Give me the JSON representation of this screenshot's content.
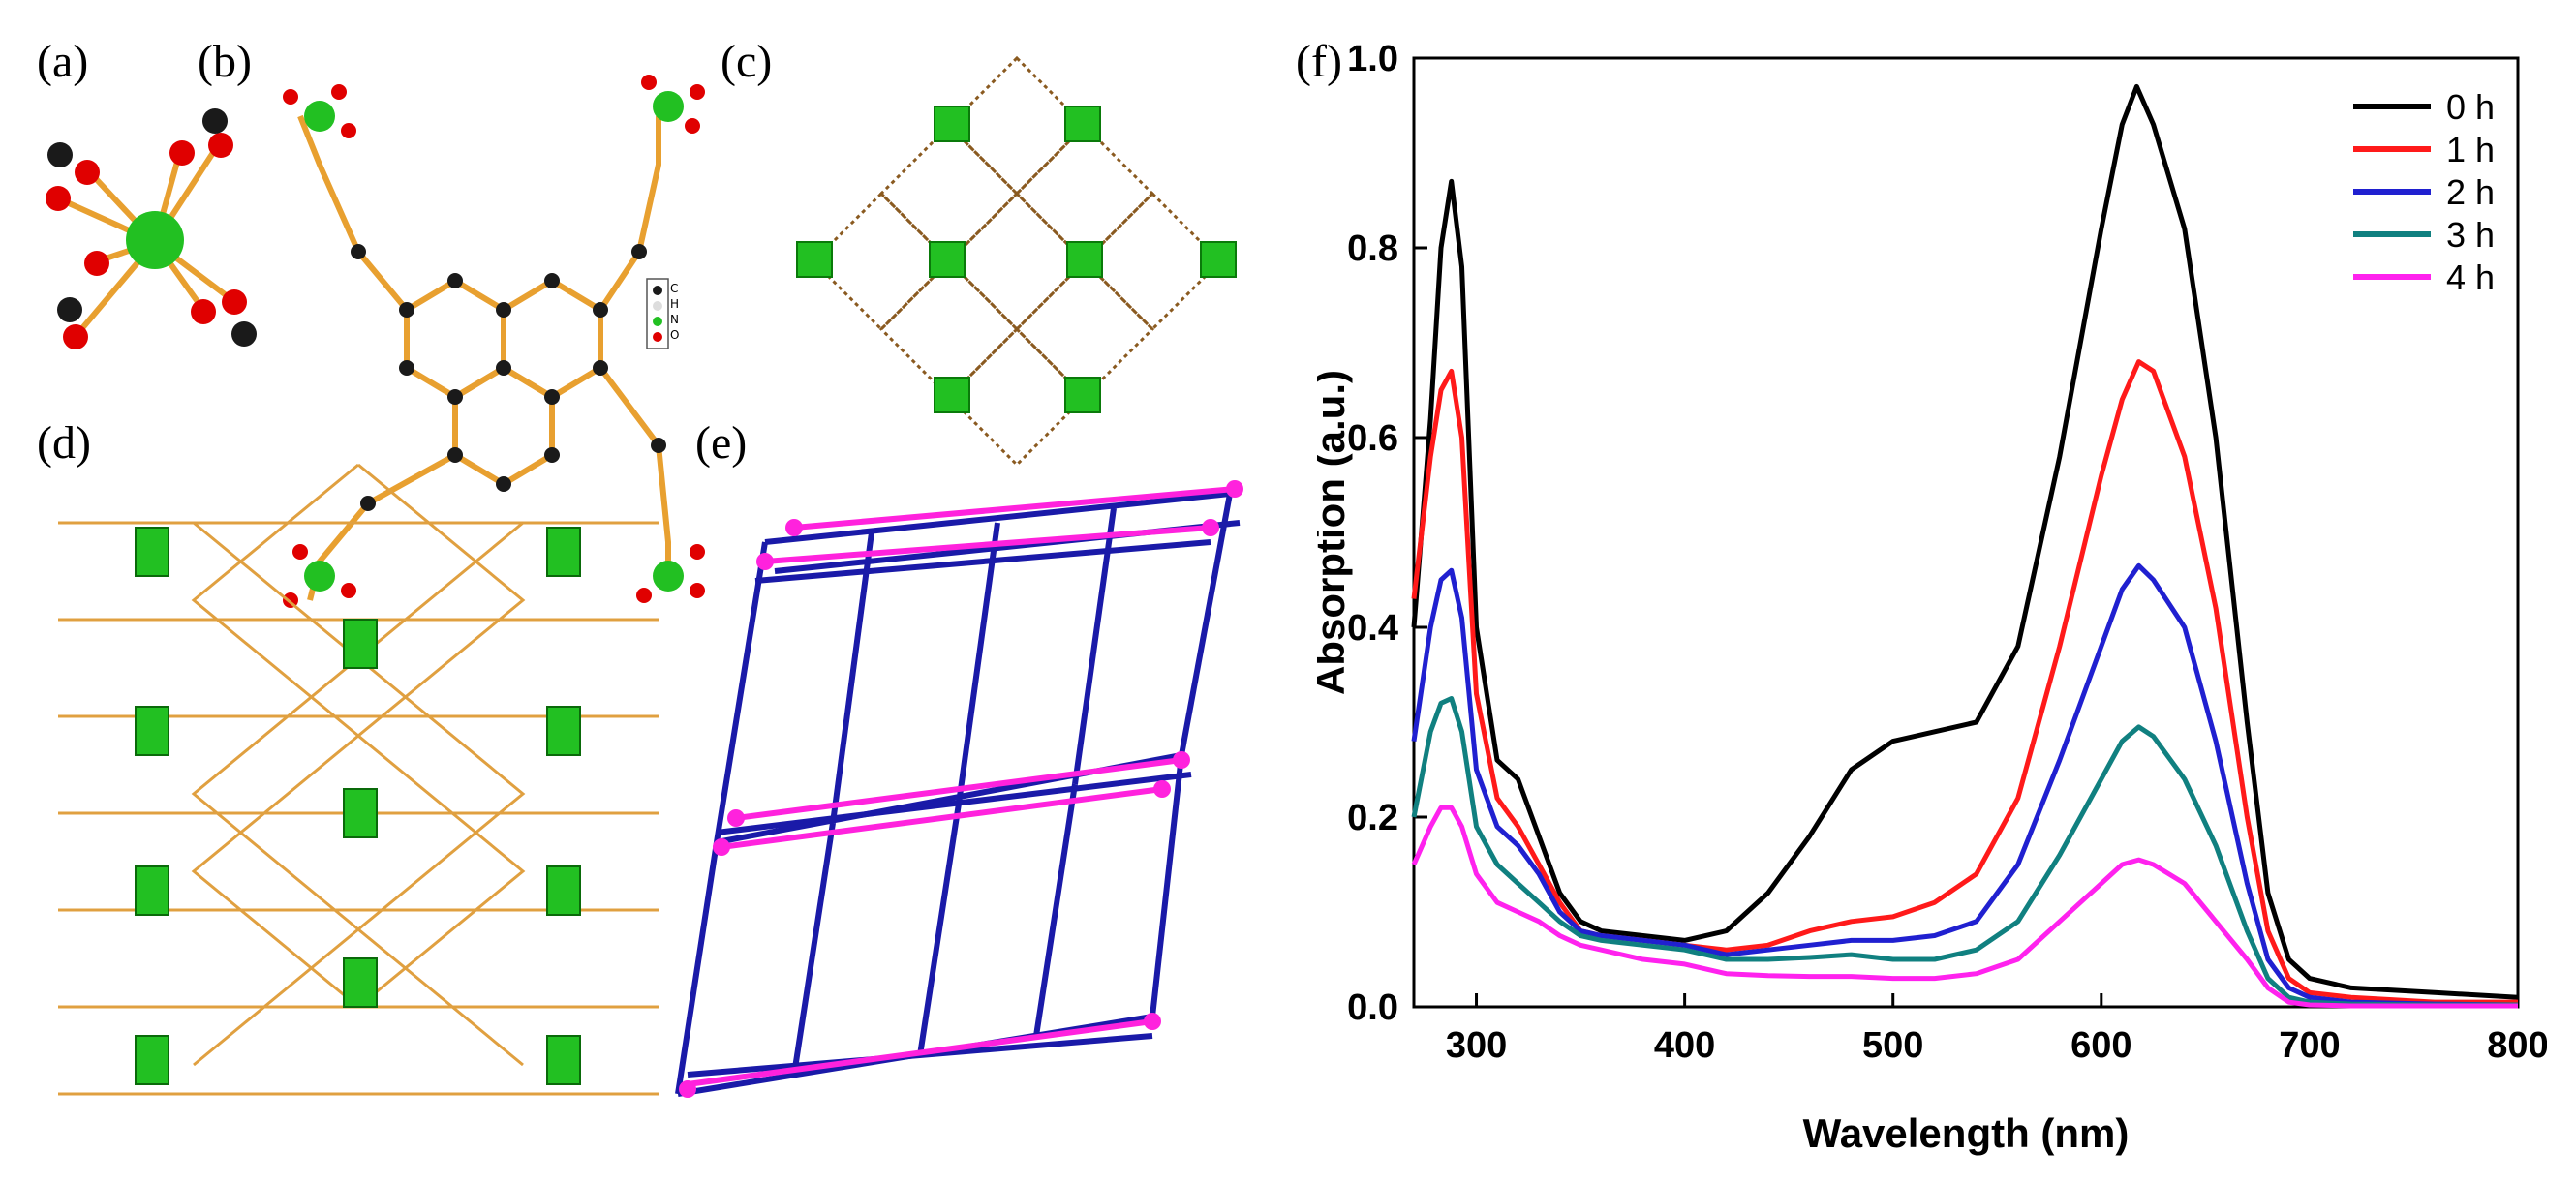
{
  "panels": {
    "a": "(a)",
    "b": "(b)",
    "c": "(c)",
    "d": "(d)",
    "e": "(e)",
    "f": "(f)"
  },
  "legend_atoms": [
    "C",
    "H",
    "N",
    "O"
  ],
  "colors": {
    "metal": "#22c022",
    "oxygen": "#e00000",
    "carbon": "#1a1a1a",
    "bond": "#e8a030",
    "net_blue": "#1a1aa8",
    "net_magenta": "#ff22dd"
  },
  "chart_data": {
    "type": "line",
    "title": "",
    "xlabel": "Wavelength (nm)",
    "ylabel": "Absorption (a.u.)",
    "xlim": [
      270,
      800
    ],
    "ylim": [
      0.0,
      1.0
    ],
    "xticks": [
      300,
      400,
      500,
      600,
      700,
      800
    ],
    "yticks": [
      "0.0",
      "0.2",
      "0.4",
      "0.6",
      "0.8",
      "1.0"
    ],
    "legend_position": "top-right",
    "series": [
      {
        "name": "0 h",
        "color": "#000000",
        "x": [
          270,
          278,
          283,
          288,
          293,
          300,
          310,
          320,
          330,
          340,
          350,
          360,
          380,
          400,
          420,
          440,
          460,
          480,
          500,
          520,
          540,
          560,
          580,
          600,
          610,
          617,
          625,
          640,
          655,
          670,
          680,
          690,
          700,
          720,
          760,
          800
        ],
        "y": [
          0.4,
          0.62,
          0.8,
          0.87,
          0.78,
          0.4,
          0.26,
          0.24,
          0.18,
          0.12,
          0.09,
          0.08,
          0.075,
          0.07,
          0.08,
          0.12,
          0.18,
          0.25,
          0.28,
          0.29,
          0.3,
          0.38,
          0.58,
          0.82,
          0.93,
          0.97,
          0.93,
          0.82,
          0.6,
          0.3,
          0.12,
          0.05,
          0.03,
          0.02,
          0.015,
          0.01
        ]
      },
      {
        "name": "1 h",
        "color": "#ff1a1a",
        "x": [
          270,
          278,
          283,
          288,
          293,
          300,
          310,
          320,
          330,
          340,
          350,
          360,
          380,
          400,
          420,
          440,
          460,
          480,
          500,
          520,
          540,
          560,
          580,
          600,
          610,
          618,
          625,
          640,
          655,
          670,
          680,
          690,
          700,
          720,
          760,
          800
        ],
        "y": [
          0.43,
          0.58,
          0.65,
          0.67,
          0.6,
          0.33,
          0.22,
          0.19,
          0.15,
          0.11,
          0.08,
          0.075,
          0.07,
          0.065,
          0.06,
          0.065,
          0.08,
          0.09,
          0.095,
          0.11,
          0.14,
          0.22,
          0.38,
          0.56,
          0.64,
          0.68,
          0.67,
          0.58,
          0.42,
          0.2,
          0.08,
          0.03,
          0.015,
          0.01,
          0.005,
          0.005
        ]
      },
      {
        "name": "2 h",
        "color": "#2020d0",
        "x": [
          270,
          278,
          283,
          288,
          293,
          300,
          310,
          320,
          330,
          340,
          350,
          360,
          380,
          400,
          420,
          440,
          460,
          480,
          500,
          520,
          540,
          560,
          580,
          600,
          610,
          618,
          625,
          640,
          655,
          670,
          680,
          690,
          700,
          720,
          760,
          800
        ],
        "y": [
          0.28,
          0.4,
          0.45,
          0.46,
          0.41,
          0.25,
          0.19,
          0.17,
          0.14,
          0.1,
          0.08,
          0.075,
          0.07,
          0.065,
          0.055,
          0.06,
          0.065,
          0.07,
          0.07,
          0.075,
          0.09,
          0.15,
          0.26,
          0.38,
          0.44,
          0.465,
          0.45,
          0.4,
          0.28,
          0.13,
          0.05,
          0.02,
          0.01,
          0.005,
          0.003,
          0.002
        ]
      },
      {
        "name": "3 h",
        "color": "#108080",
        "x": [
          270,
          278,
          283,
          288,
          293,
          300,
          310,
          320,
          330,
          340,
          350,
          360,
          380,
          400,
          420,
          440,
          460,
          480,
          500,
          520,
          540,
          560,
          580,
          600,
          610,
          618,
          625,
          640,
          655,
          670,
          680,
          690,
          700,
          720,
          760,
          800
        ],
        "y": [
          0.2,
          0.29,
          0.32,
          0.325,
          0.29,
          0.19,
          0.15,
          0.13,
          0.11,
          0.09,
          0.075,
          0.07,
          0.065,
          0.06,
          0.05,
          0.05,
          0.052,
          0.055,
          0.05,
          0.05,
          0.06,
          0.09,
          0.16,
          0.24,
          0.28,
          0.295,
          0.285,
          0.24,
          0.17,
          0.08,
          0.03,
          0.01,
          0.005,
          0.003,
          0.002,
          0.002
        ]
      },
      {
        "name": "4 h",
        "color": "#ff22ee",
        "x": [
          270,
          278,
          283,
          288,
          293,
          300,
          310,
          320,
          330,
          340,
          350,
          360,
          380,
          400,
          420,
          440,
          460,
          480,
          500,
          520,
          540,
          560,
          580,
          600,
          610,
          618,
          625,
          640,
          655,
          670,
          680,
          690,
          700,
          720,
          760,
          800
        ],
        "y": [
          0.15,
          0.19,
          0.21,
          0.21,
          0.19,
          0.14,
          0.11,
          0.1,
          0.09,
          0.075,
          0.065,
          0.06,
          0.05,
          0.045,
          0.035,
          0.033,
          0.032,
          0.032,
          0.03,
          0.03,
          0.035,
          0.05,
          0.09,
          0.13,
          0.15,
          0.155,
          0.15,
          0.13,
          0.09,
          0.05,
          0.02,
          0.005,
          0.002,
          0.001,
          0.001,
          0.001
        ]
      }
    ]
  }
}
